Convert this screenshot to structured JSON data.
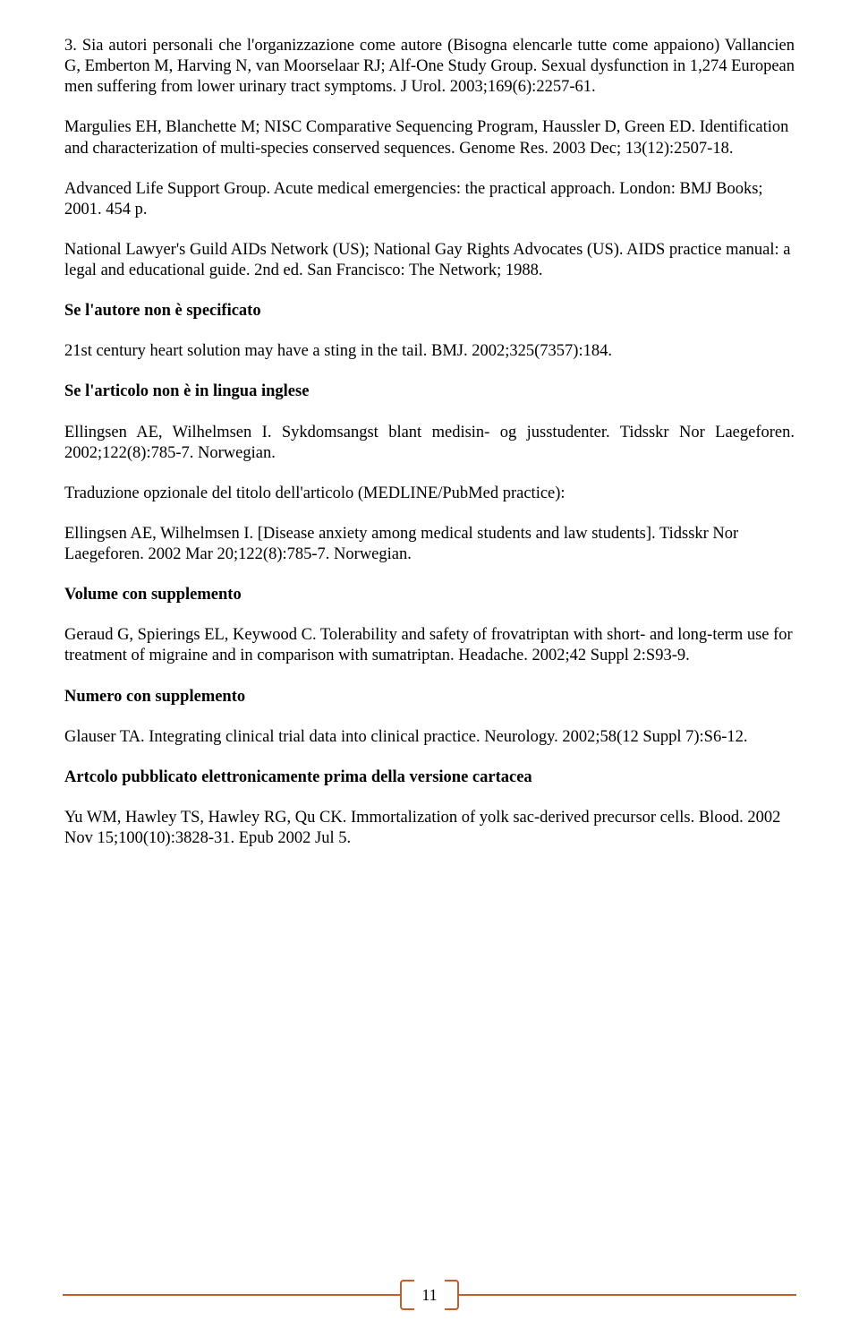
{
  "paragraphs": {
    "p1": "3. Sia autori personali che l'organizzazione come autore (Bisogna elencarle tutte come appaiono) Vallancien G, Emberton M, Harving N, van Moorselaar RJ; Alf-One Study Group. Sexual dysfunction in 1,274 European men suffering from lower urinary tract symptoms. J Urol. 2003;169(6):2257-61.",
    "p2": "Margulies EH, Blanchette M; NISC Comparative Sequencing Program, Haussler D, Green ED. Identification and characterization of multi-species conserved sequences. Genome Res. 2003 Dec; 13(12):2507-18.",
    "p3": "Advanced Life Support Group. Acute medical emergencies: the practical approach. London: BMJ Books; 2001. 454 p.",
    "p4": "National Lawyer's Guild AIDs Network (US); National Gay Rights Advocates (US). AIDS practice manual: a legal and educational guide. 2nd ed. San Francisco: The Network; 1988.",
    "p5": "21st century heart solution may have a sting in the tail. BMJ. 2002;325(7357):184.",
    "p6": "Ellingsen AE, Wilhelmsen I. Sykdomsangst blant medisin- og jusstudenter. Tidsskr Nor Laegeforen. 2002;122(8):785-7. Norwegian.",
    "p7": "Traduzione opzionale del titolo dell'articolo (MEDLINE/PubMed practice):",
    "p8": "Ellingsen AE, Wilhelmsen I. [Disease anxiety among medical students and law students]. Tidsskr Nor Laegeforen. 2002 Mar 20;122(8):785-7. Norwegian.",
    "p9": "Geraud G, Spierings EL, Keywood C. Tolerability and safety of frovatriptan with short- and long-term use for treatment of migraine and in comparison with sumatriptan. Headache. 2002;42 Suppl 2:S93-9.",
    "p10": "Glauser TA. Integrating clinical trial data into clinical practice. Neurology. 2002;58(12 Suppl 7):S6-12.",
    "p11": "Yu WM, Hawley TS, Hawley RG, Qu CK. Immortalization of yolk sac-derived precursor cells. Blood. 2002 Nov 15;100(10):3828-31. Epub 2002 Jul 5."
  },
  "headings": {
    "h1": "Se l'autore non è specificato",
    "h2": "Se l'articolo non è in lingua inglese",
    "h3": "Volume con supplemento",
    "h4": "Numero con supplemento",
    "h5": "Artcolo pubblicato elettronicamente prima della versione cartacea"
  },
  "footer": {
    "page_number": "11"
  }
}
